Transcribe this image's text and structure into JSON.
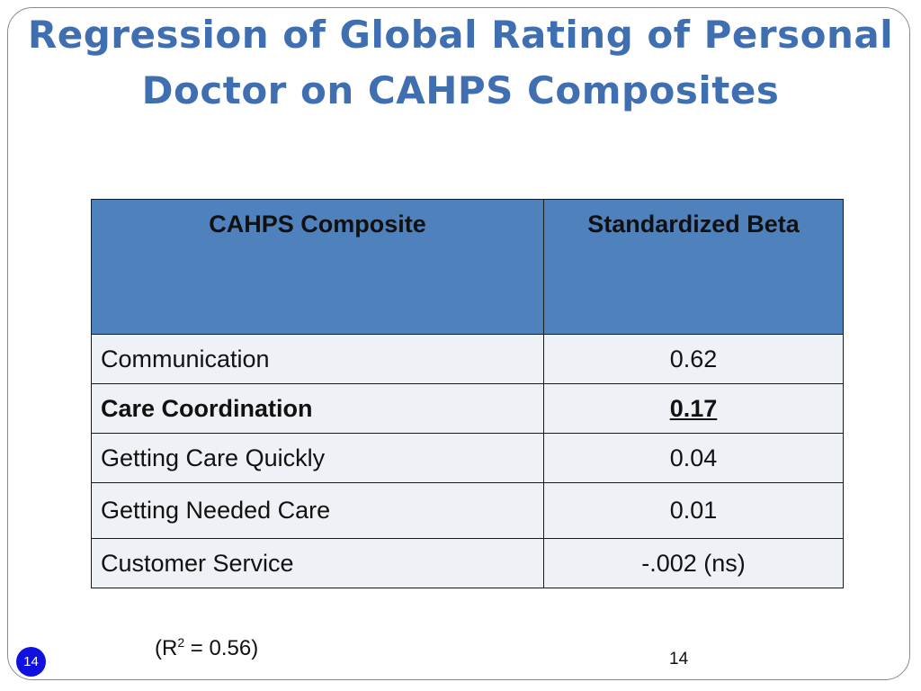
{
  "slide": {
    "title_line1": "Regression of Global Rating of Personal",
    "title_line2": "Doctor on CAHPS Composites"
  },
  "table": {
    "headers": [
      "CAHPS Composite",
      "Standardized Beta"
    ],
    "rows": [
      {
        "composite": "Communication",
        "beta": "0.62"
      },
      {
        "composite": "Care Coordination",
        "beta": "0.17"
      },
      {
        "composite": "Getting Care Quickly",
        "beta": "0.04"
      },
      {
        "composite": "Getting Needed Care",
        "beta": "0.01"
      },
      {
        "composite": "Customer Service",
        "beta": "-.002 (ns)"
      }
    ]
  },
  "footer": {
    "r2_prefix": "(R",
    "r2_sup": "2",
    "r2_suffix": " = 0.56)",
    "badge_number": "14",
    "page_number": "14"
  },
  "colors": {
    "title": "#3f6fb1",
    "header_bg": "#4f81bd",
    "row_bg": "#eef2f6",
    "badge_bg": "#1010e0"
  }
}
